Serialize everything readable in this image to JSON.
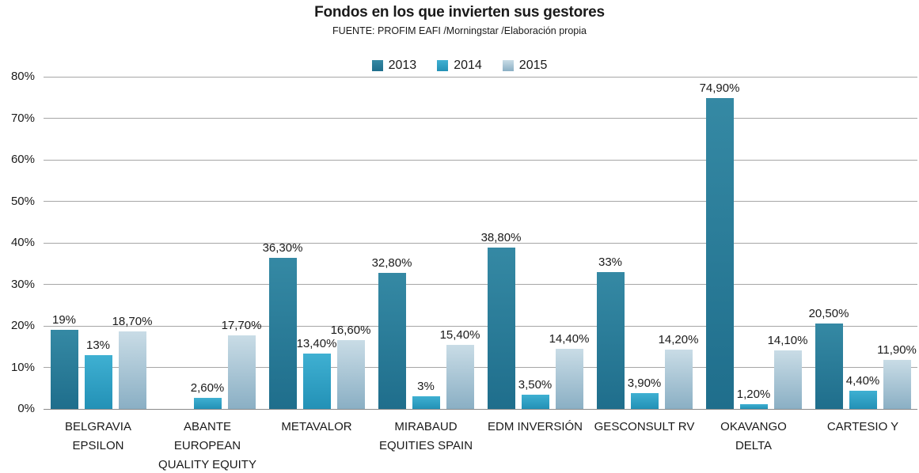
{
  "chart_data": {
    "type": "bar",
    "title": "Fondos en los que invierten sus gestores",
    "subtitle": "FUENTE: PROFIM EAFI /Morningstar /Elaboración propia",
    "legend_position": "top",
    "grid": true,
    "ylim": [
      0,
      80
    ],
    "ytick_step": 10,
    "ytick_labels": [
      "0%",
      "10%",
      "20%",
      "30%",
      "40%",
      "50%",
      "60%",
      "70%",
      "80%"
    ],
    "categories": [
      {
        "label_lines": [
          "BELGRAVIA",
          "EPSILON"
        ]
      },
      {
        "label_lines": [
          "ABANTE",
          "EUROPEAN",
          "QUALITY EQUITY"
        ]
      },
      {
        "label_lines": [
          "METAVALOR"
        ]
      },
      {
        "label_lines": [
          "MIRABAUD",
          "EQUITIES SPAIN"
        ]
      },
      {
        "label_lines": [
          "EDM INVERSIÓN"
        ]
      },
      {
        "label_lines": [
          "GESCONSULT RV"
        ]
      },
      {
        "label_lines": [
          "OKAVANGO",
          "DELTA"
        ]
      },
      {
        "label_lines": [
          "CARTESIO Y"
        ]
      }
    ],
    "series": [
      {
        "name": "2013",
        "values": [
          19,
          null,
          36.3,
          32.8,
          38.8,
          33,
          74.9,
          20.5
        ],
        "labels": [
          "19%",
          null,
          "36,30%",
          "32,80%",
          "38,80%",
          "33%",
          "74,90%",
          "20,50%"
        ],
        "color_top": "#3589a4",
        "color_bottom": "#1f6e8c",
        "legend_color": "#2a7f9b"
      },
      {
        "name": "2014",
        "values": [
          13,
          2.6,
          13.4,
          3,
          3.5,
          3.9,
          1.2,
          4.4
        ],
        "labels": [
          "13%",
          "2,60%",
          "13,40%",
          "3%",
          "3,50%",
          "3,90%",
          "1,20%",
          "4,40%"
        ],
        "color_top": "#3fb0d2",
        "color_bottom": "#2391b6",
        "legend_color": "#32a4c7"
      },
      {
        "name": "2015",
        "values": [
          18.7,
          17.7,
          16.6,
          15.4,
          14.4,
          14.2,
          14.1,
          11.9
        ],
        "labels": [
          "18,70%",
          "17,70%",
          "16,60%",
          "15,40%",
          "14,40%",
          "14,20%",
          "14,10%",
          "11,90%"
        ],
        "color_top": "#c9dce6",
        "color_bottom": "#8aafc4",
        "legend_color": "#a9c8d8"
      }
    ],
    "grid_color": "#a6a6a6",
    "axis_color": "#8a8a8a",
    "text_color": "#1a1a1a",
    "background": "#ffffff"
  }
}
